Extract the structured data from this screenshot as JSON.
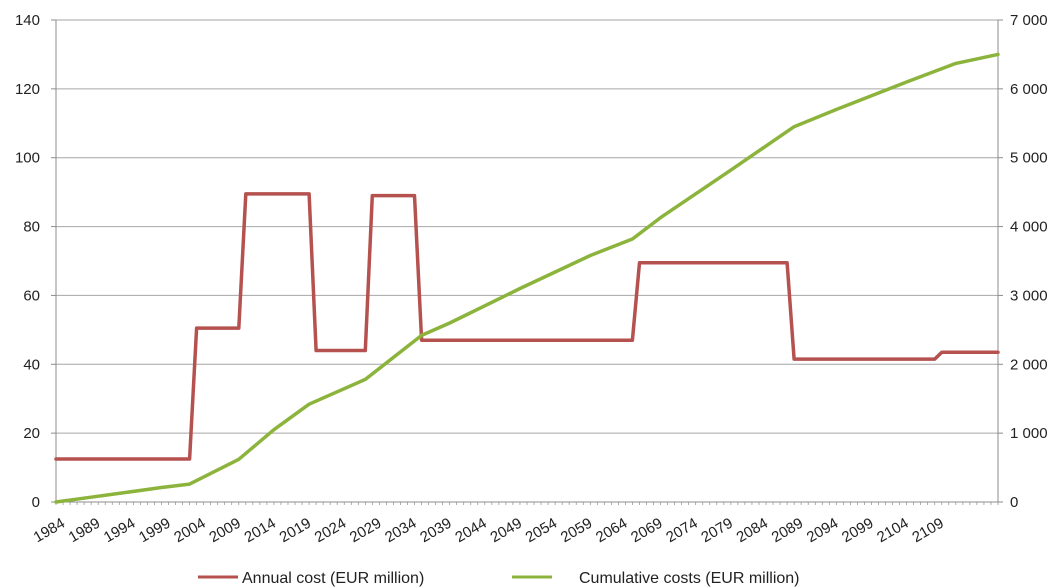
{
  "chart_data": {
    "type": "line",
    "title": "",
    "xlabel": "",
    "ylabel": "",
    "y2label": "",
    "x_tick_labels": [
      "1984",
      "1989",
      "1994",
      "1999",
      "2004",
      "2009",
      "2014",
      "2019",
      "2024",
      "2029",
      "2034",
      "2039",
      "2044",
      "2049",
      "2054",
      "2059",
      "2064",
      "2069",
      "2074",
      "2079",
      "2084",
      "2089",
      "2094",
      "2099",
      "2104",
      "2109"
    ],
    "xlim": [
      1984,
      2118
    ],
    "ylim": [
      0,
      140
    ],
    "y_ticks": [
      0,
      20,
      40,
      60,
      80,
      100,
      120,
      140
    ],
    "y_tick_labels": [
      "0",
      "20",
      "40",
      "60",
      "80",
      "100",
      "120",
      "140"
    ],
    "y2lim": [
      0,
      7000
    ],
    "y2_ticks": [
      0,
      1000,
      2000,
      3000,
      4000,
      5000,
      6000,
      7000
    ],
    "y2_tick_labels": [
      "0",
      "1 000",
      "2 000",
      "3 000",
      "4 000",
      "5 000",
      "6 000",
      "7 000"
    ],
    "grid": true,
    "legend_position": "bottom",
    "series": [
      {
        "name": "Annual cost (EUR million)",
        "axis": "left",
        "color": "#b5524f",
        "points": [
          [
            1984,
            12.5
          ],
          [
            2003,
            12.5
          ],
          [
            2004,
            50.5
          ],
          [
            2010,
            50.5
          ],
          [
            2011,
            89.5
          ],
          [
            2020,
            89.5
          ],
          [
            2021,
            44
          ],
          [
            2028,
            44
          ],
          [
            2029,
            89
          ],
          [
            2035,
            89
          ],
          [
            2036,
            47
          ],
          [
            2066,
            47
          ],
          [
            2067,
            69.5
          ],
          [
            2088,
            69.5
          ],
          [
            2089,
            41.5
          ],
          [
            2109,
            41.5
          ],
          [
            2110,
            43.5
          ],
          [
            2118,
            43.5
          ]
        ]
      },
      {
        "name": "Cumulative costs (EUR million)",
        "axis": "right",
        "color": "#8cb43c",
        "points": [
          [
            1984,
            0
          ],
          [
            1989,
            70
          ],
          [
            1994,
            140
          ],
          [
            1999,
            210
          ],
          [
            2003,
            260
          ],
          [
            2010,
            620
          ],
          [
            2015,
            1050
          ],
          [
            2020,
            1420
          ],
          [
            2028,
            1780
          ],
          [
            2036,
            2420
          ],
          [
            2040,
            2600
          ],
          [
            2050,
            3100
          ],
          [
            2060,
            3580
          ],
          [
            2066,
            3820
          ],
          [
            2070,
            4130
          ],
          [
            2080,
            4820
          ],
          [
            2089,
            5450
          ],
          [
            2095,
            5700
          ],
          [
            2105,
            6100
          ],
          [
            2112,
            6370
          ],
          [
            2118,
            6500
          ]
        ]
      }
    ]
  }
}
